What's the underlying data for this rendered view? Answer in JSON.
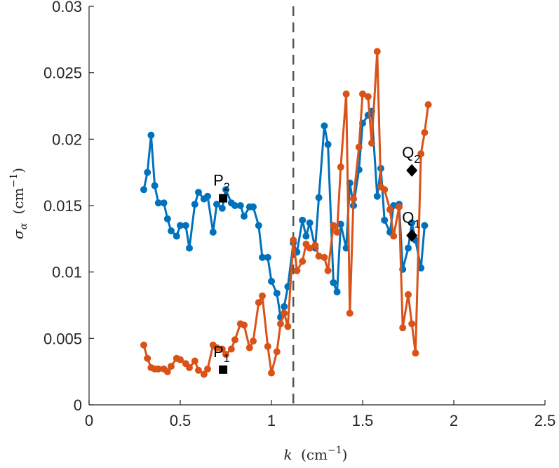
{
  "chart_data": {
    "type": "line",
    "title": "",
    "xlabel": {
      "main": "k",
      "unit": "(cm",
      "sup": "−1",
      "close": ")"
    },
    "ylabel": {
      "main": "σ",
      "sub": "α",
      "unit": "(cm",
      "sup": "−1",
      "close": ")"
    },
    "xlim": [
      0,
      2.5
    ],
    "ylim": [
      0,
      0.03
    ],
    "xticks": [
      "0",
      "0.5",
      "1",
      "1.5",
      "2",
      "2.5"
    ],
    "yticks": [
      "0",
      "0.005",
      "0.01",
      "0.015",
      "0.02",
      "0.025",
      "0.03"
    ],
    "grid": false,
    "legend": "none",
    "vline": {
      "x": 1.12,
      "style": "dashed",
      "color": "#555555"
    },
    "series": [
      {
        "color": "#0072BD",
        "points": [
          [
            0.3,
            0.0162
          ],
          [
            0.32,
            0.0175
          ],
          [
            0.34,
            0.0203
          ],
          [
            0.36,
            0.0165
          ],
          [
            0.38,
            0.0152
          ],
          [
            0.41,
            0.0152
          ],
          [
            0.43,
            0.014
          ],
          [
            0.45,
            0.0131
          ],
          [
            0.48,
            0.0127
          ],
          [
            0.5,
            0.0135
          ],
          [
            0.53,
            0.0135
          ],
          [
            0.55,
            0.0118
          ],
          [
            0.58,
            0.0151
          ],
          [
            0.6,
            0.016
          ],
          [
            0.63,
            0.0155
          ],
          [
            0.65,
            0.0157
          ],
          [
            0.68,
            0.013
          ],
          [
            0.7,
            0.0151
          ],
          [
            0.73,
            0.0148
          ],
          [
            0.75,
            0.0162
          ],
          [
            0.78,
            0.0152
          ],
          [
            0.8,
            0.015
          ],
          [
            0.83,
            0.015
          ],
          [
            0.85,
            0.0142
          ],
          [
            0.88,
            0.0149
          ],
          [
            0.9,
            0.0149
          ],
          [
            0.93,
            0.0135
          ],
          [
            0.95,
            0.0111
          ],
          [
            0.98,
            0.0111
          ],
          [
            1.0,
            0.0093
          ],
          [
            1.03,
            0.0084
          ],
          [
            1.05,
            0.0066
          ],
          [
            1.07,
            0.0074
          ],
          [
            1.09,
            0.0089
          ],
          [
            1.12,
            0.0122
          ],
          [
            1.14,
            0.0115
          ],
          [
            1.17,
            0.0139
          ],
          [
            1.19,
            0.0127
          ],
          [
            1.21,
            0.0137
          ],
          [
            1.24,
            0.0118
          ],
          [
            1.26,
            0.0156
          ],
          [
            1.29,
            0.021
          ],
          [
            1.31,
            0.0196
          ],
          [
            1.34,
            0.0092
          ],
          [
            1.36,
            0.0085
          ],
          [
            1.38,
            0.0136
          ],
          [
            1.41,
            0.0118
          ],
          [
            1.43,
            0.0167
          ],
          [
            1.45,
            0.015
          ],
          [
            1.48,
            0.0177
          ],
          [
            1.5,
            0.0212
          ],
          [
            1.53,
            0.0218
          ],
          [
            1.55,
            0.0221
          ],
          [
            1.58,
            0.0157
          ],
          [
            1.6,
            0.0178
          ],
          [
            1.62,
            0.0139
          ],
          [
            1.65,
            0.013
          ],
          [
            1.67,
            0.015
          ],
          [
            1.7,
            0.0151
          ],
          [
            1.72,
            0.0102
          ],
          [
            1.75,
            0.0118
          ],
          [
            1.77,
            0.0137
          ],
          [
            1.79,
            0.0124
          ],
          [
            1.82,
            0.0103
          ],
          [
            1.84,
            0.0135
          ]
        ]
      },
      {
        "color": "#D95319",
        "points": [
          [
            0.3,
            0.0045
          ],
          [
            0.32,
            0.0035
          ],
          [
            0.34,
            0.0028
          ],
          [
            0.36,
            0.0027
          ],
          [
            0.38,
            0.0027
          ],
          [
            0.41,
            0.0027
          ],
          [
            0.43,
            0.0025
          ],
          [
            0.45,
            0.0029
          ],
          [
            0.48,
            0.0035
          ],
          [
            0.5,
            0.0034
          ],
          [
            0.53,
            0.0031
          ],
          [
            0.55,
            0.0028
          ],
          [
            0.58,
            0.0033
          ],
          [
            0.6,
            0.0026
          ],
          [
            0.63,
            0.0023
          ],
          [
            0.65,
            0.0027
          ],
          [
            0.68,
            0.0045
          ],
          [
            0.7,
            0.0043
          ],
          [
            0.73,
            0.0042
          ],
          [
            0.75,
            0.0038
          ],
          [
            0.78,
            0.0042
          ],
          [
            0.8,
            0.0049
          ],
          [
            0.83,
            0.0061
          ],
          [
            0.85,
            0.006
          ],
          [
            0.88,
            0.0043
          ],
          [
            0.9,
            0.0048
          ],
          [
            0.93,
            0.0077
          ],
          [
            0.95,
            0.0082
          ],
          [
            0.98,
            0.0044
          ],
          [
            1.0,
            0.0024
          ],
          [
            1.03,
            0.004
          ],
          [
            1.05,
            0.0061
          ],
          [
            1.07,
            0.0069
          ],
          [
            1.09,
            0.0059
          ],
          [
            1.12,
            0.0124
          ],
          [
            1.14,
            0.0101
          ],
          [
            1.17,
            0.0108
          ],
          [
            1.19,
            0.0121
          ],
          [
            1.21,
            0.0118
          ],
          [
            1.24,
            0.012
          ],
          [
            1.26,
            0.0112
          ],
          [
            1.29,
            0.0111
          ],
          [
            1.31,
            0.0101
          ],
          [
            1.34,
            0.0135
          ],
          [
            1.36,
            0.013
          ],
          [
            1.38,
            0.0179
          ],
          [
            1.41,
            0.0234
          ],
          [
            1.43,
            0.0069
          ],
          [
            1.45,
            0.0155
          ],
          [
            1.48,
            0.0194
          ],
          [
            1.5,
            0.0234
          ],
          [
            1.53,
            0.0232
          ],
          [
            1.55,
            0.0197
          ],
          [
            1.58,
            0.0266
          ],
          [
            1.6,
            0.0164
          ],
          [
            1.62,
            0.0162
          ],
          [
            1.65,
            0.0147
          ],
          [
            1.67,
            0.0127
          ],
          [
            1.7,
            0.0149
          ],
          [
            1.72,
            0.0058
          ],
          [
            1.75,
            0.0083
          ],
          [
            1.77,
            0.0061
          ],
          [
            1.79,
            0.0039
          ],
          [
            1.82,
            0.0189
          ],
          [
            1.84,
            0.0205
          ],
          [
            1.86,
            0.0226
          ]
        ]
      }
    ],
    "markers": [
      {
        "label": "P",
        "sub": "2",
        "x": 0.735,
        "y": 0.01555,
        "shape": "square"
      },
      {
        "label": "P",
        "sub": "1",
        "x": 0.735,
        "y": 0.00265,
        "shape": "square"
      },
      {
        "label": "Q",
        "sub": "2",
        "x": 1.77,
        "y": 0.01765,
        "shape": "diamond"
      },
      {
        "label": "Q",
        "sub": "1",
        "x": 1.77,
        "y": 0.01275,
        "shape": "diamond"
      }
    ]
  }
}
